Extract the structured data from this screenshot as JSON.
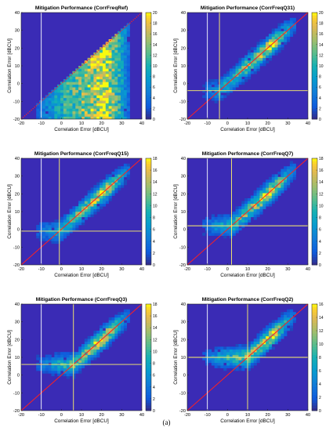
{
  "figure_caption": "(a)",
  "colors": {
    "background": "#3a2bb5",
    "identity_line": "#ff2020",
    "threshold_line": "#fff36a",
    "vertical_ref": "#ffffff"
  },
  "colormap": "parula",
  "chart_data": [
    {
      "type": "heatmap",
      "title": "Mitigation Performance (CorrFreqRef)",
      "xlabel": "Correlation Error [dBCU]",
      "ylabel": "Correlation Error [dBCU]",
      "xlim": [
        -20,
        40
      ],
      "ylim": [
        -20,
        40
      ],
      "xticks": [
        -20,
        -10,
        0,
        10,
        20,
        30,
        40
      ],
      "yticks": [
        -20,
        -10,
        0,
        10,
        20,
        30,
        40
      ],
      "colorbar": {
        "min": 0,
        "max": 20,
        "ticks": [
          0,
          2,
          4,
          6,
          8,
          10,
          12,
          14,
          16,
          18,
          20
        ]
      },
      "vertical_line_x": -10,
      "threshold_x": null,
      "threshold_y": null,
      "identity_line": "dotted"
    },
    {
      "type": "heatmap",
      "title": "Mitigation Performance (CorrFreqQ31)",
      "xlabel": "Correlation Error [dBCU]",
      "ylabel": "Correlation Error [dBCU]",
      "xlim": [
        -20,
        40
      ],
      "ylim": [
        -20,
        40
      ],
      "xticks": [
        -20,
        -10,
        0,
        10,
        20,
        30,
        40
      ],
      "yticks": [
        -20,
        -10,
        0,
        10,
        20,
        30,
        40
      ],
      "colorbar": {
        "min": 0,
        "max": 20,
        "ticks": [
          0,
          2,
          4,
          6,
          8,
          10,
          12,
          14,
          16,
          18,
          20
        ]
      },
      "vertical_line_x": -10,
      "threshold_x": -4,
      "threshold_y": -4,
      "identity_line": "solid"
    },
    {
      "type": "heatmap",
      "title": "Mitigation Performance (CorrFreqQ15)",
      "xlabel": "Correlation Error [dBCU]",
      "ylabel": "Correlation Error [dBCU]",
      "xlim": [
        -20,
        40
      ],
      "ylim": [
        -20,
        40
      ],
      "xticks": [
        -20,
        -10,
        0,
        10,
        20,
        30,
        40
      ],
      "yticks": [
        -20,
        -10,
        0,
        10,
        20,
        30,
        40
      ],
      "colorbar": {
        "min": 0,
        "max": 18,
        "ticks": [
          0,
          2,
          4,
          6,
          8,
          10,
          12,
          14,
          16,
          18
        ]
      },
      "vertical_line_x": -10,
      "threshold_x": -1,
      "threshold_y": -1,
      "identity_line": "solid"
    },
    {
      "type": "heatmap",
      "title": "Mitigation Performance (CorrFreqQ7)",
      "xlabel": "Correlation Error [dBCU]",
      "ylabel": "Correlation Error [dBCU]",
      "xlim": [
        -20,
        40
      ],
      "ylim": [
        -20,
        40
      ],
      "xticks": [
        -20,
        -10,
        0,
        10,
        20,
        30,
        40
      ],
      "yticks": [
        -20,
        -10,
        0,
        10,
        20,
        30,
        40
      ],
      "colorbar": {
        "min": 0,
        "max": 18,
        "ticks": [
          0,
          2,
          4,
          6,
          8,
          10,
          12,
          14,
          16,
          18
        ]
      },
      "vertical_line_x": -10,
      "threshold_x": 2,
      "threshold_y": 2,
      "identity_line": "solid"
    },
    {
      "type": "heatmap",
      "title": "Mitigation Performance (CorrFreqQ3)",
      "xlabel": "Correlation Error [dBCU]",
      "ylabel": "Correlation Error [dBCU]",
      "xlim": [
        -20,
        40
      ],
      "ylim": [
        -20,
        40
      ],
      "xticks": [
        -20,
        -10,
        0,
        10,
        20,
        30,
        40
      ],
      "yticks": [
        -20,
        -10,
        0,
        10,
        20,
        30,
        40
      ],
      "colorbar": {
        "min": 0,
        "max": 18,
        "ticks": [
          0,
          2,
          4,
          6,
          8,
          10,
          12,
          14,
          16,
          18
        ]
      },
      "vertical_line_x": -10,
      "threshold_x": 6,
      "threshold_y": 6,
      "identity_line": "solid"
    },
    {
      "type": "heatmap",
      "title": "Mitigation Performance (CorrFreqQ2)",
      "xlabel": "Correlation Error [dBCU]",
      "ylabel": "Correlation Error [dBCU]",
      "xlim": [
        -20,
        40
      ],
      "ylim": [
        -20,
        40
      ],
      "xticks": [
        -20,
        -10,
        0,
        10,
        20,
        30,
        40
      ],
      "yticks": [
        -20,
        -10,
        0,
        10,
        20,
        30,
        40
      ],
      "colorbar": {
        "min": 0,
        "max": 16,
        "ticks": [
          0,
          2,
          4,
          6,
          8,
          10,
          12,
          14,
          16
        ]
      },
      "vertical_line_x": -10,
      "threshold_x": 10,
      "threshold_y": 10,
      "identity_line": "solid"
    }
  ]
}
